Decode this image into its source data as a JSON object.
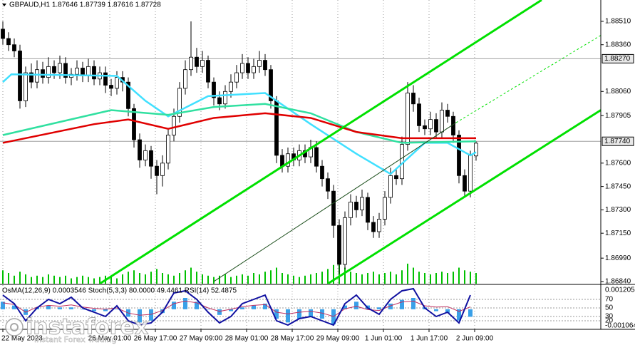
{
  "chart_data": {
    "type": "candlestick",
    "title": "GBPAUD,H1  1.87646 1.87739 1.87616 1.87728",
    "xlim": [
      -0.5,
      104.875
    ],
    "ylim": [
      1.86826,
      1.88647
    ],
    "yticks": [
      {
        "value": 1.8851,
        "label": "1.88510"
      },
      {
        "value": 1.8836,
        "label": "1.88360"
      },
      {
        "value": 1.8806,
        "label": "1.88060"
      },
      1.87905,
      {
        "value": 1.876,
        "label": "1.87600"
      },
      {
        "value": 1.8745,
        "label": "1.87450"
      },
      {
        "value": 1.873,
        "label": "1.87300"
      },
      {
        "value": 1.8715,
        "label": "1.87150"
      },
      {
        "value": 1.8699,
        "label": "1.86990"
      },
      {
        "value": 1.8684,
        "label": "1.86840"
      }
    ],
    "hlines": [
      {
        "value": 1.8827,
        "label": "1.88270"
      },
      {
        "value": 1.8774,
        "label": "1.87740"
      }
    ],
    "xticks": [
      {
        "value": 0,
        "label": "22 May 2023"
      },
      {
        "value": 18.75,
        "label": "26 May 01:00"
      },
      {
        "value": 26.75,
        "label": "26 May 17:00"
      },
      {
        "value": 34.75,
        "label": "27 May 09:00"
      },
      {
        "value": 42.75,
        "label": "28 May 01:00"
      },
      {
        "value": 50.75,
        "label": "28 May 17:00"
      },
      {
        "value": 58.75,
        "label": "29 May 09:00"
      },
      {
        "value": 66.75,
        "label": "1 Jun 01:00"
      },
      {
        "value": 74.75,
        "label": "1 Jun 17:00"
      },
      {
        "value": 82.75,
        "label": "2 Jun 09:00"
      }
    ],
    "grid": true,
    "candle_color": "#000000",
    "volume_color": "#00c000",
    "open": [
      1.8846,
      1.884,
      1.8836,
      1.8832,
      1.88,
      1.8818,
      1.8812,
      1.882,
      1.8815,
      1.8822,
      1.8818,
      1.8824,
      1.8815,
      1.8817,
      1.8821,
      1.8816,
      1.8822,
      1.8814,
      1.8818,
      1.881,
      1.8808,
      1.8815,
      1.8812,
      1.8795,
      1.8775,
      1.8762,
      1.8768,
      1.8758,
      1.8752,
      1.876,
      1.8778,
      1.879,
      1.8808,
      1.882,
      1.8828,
      1.8822,
      1.8826,
      1.8812,
      1.8802,
      1.8798,
      1.8806,
      1.8812,
      1.8818,
      1.8824,
      1.8818,
      1.8822,
      1.8826,
      1.882,
      1.88,
      1.8765,
      1.8758,
      1.8766,
      1.8762,
      1.8768,
      1.8764,
      1.877,
      1.8758,
      1.875,
      1.8742,
      1.872,
      1.8695,
      1.8725,
      1.8735,
      1.873,
      1.8738,
      1.8722,
      1.8716,
      1.8724,
      1.8738,
      1.8752,
      1.875,
      1.8772,
      1.8805,
      1.8798,
      1.8784,
      1.8782,
      1.8788,
      1.878,
      1.8794,
      1.879,
      1.8778,
      1.8752,
      1.8742,
      1.87646
    ],
    "high": [
      1.8851,
      1.8844,
      1.884,
      1.8836,
      1.8822,
      1.8824,
      1.8826,
      1.8825,
      1.8828,
      1.8826,
      1.8829,
      1.8828,
      1.8821,
      1.8826,
      1.8825,
      1.8827,
      1.8826,
      1.8822,
      1.8822,
      1.8814,
      1.8819,
      1.8819,
      1.8815,
      1.8798,
      1.8779,
      1.8772,
      1.8771,
      1.8762,
      1.8765,
      1.8782,
      1.8795,
      1.8812,
      1.8826,
      1.8851,
      1.8834,
      1.8832,
      1.8829,
      1.8815,
      1.8806,
      1.881,
      1.8817,
      1.8823,
      1.883,
      1.8828,
      1.8827,
      1.8832,
      1.883,
      1.8823,
      1.8803,
      1.8769,
      1.877,
      1.877,
      1.8772,
      1.8772,
      1.8775,
      1.8774,
      1.8762,
      1.8754,
      1.8746,
      1.8724,
      1.8729,
      1.874,
      1.8739,
      1.8743,
      1.8741,
      1.8726,
      1.8728,
      1.8742,
      1.8757,
      1.8756,
      1.8777,
      1.8812,
      1.881,
      1.8802,
      1.8788,
      1.8793,
      1.8792,
      1.8799,
      1.8798,
      1.8793,
      1.8781,
      1.8756,
      1.8768,
      1.87739
    ],
    "low": [
      1.8836,
      1.8832,
      1.8828,
      1.8795,
      1.8796,
      1.8808,
      1.8808,
      1.8811,
      1.8811,
      1.8814,
      1.8814,
      1.8811,
      1.881,
      1.8813,
      1.8812,
      1.8812,
      1.881,
      1.881,
      1.8805,
      1.8803,
      1.8804,
      1.8806,
      1.879,
      1.877,
      1.8757,
      1.8758,
      1.875,
      1.874,
      1.8745,
      1.8756,
      1.8774,
      1.8786,
      1.8804,
      1.8816,
      1.8818,
      1.8818,
      1.8808,
      1.8797,
      1.8794,
      1.8795,
      1.8802,
      1.8808,
      1.8814,
      1.8814,
      1.8814,
      1.8818,
      1.8816,
      1.8795,
      1.876,
      1.8754,
      1.8754,
      1.8758,
      1.8758,
      1.876,
      1.876,
      1.8754,
      1.8745,
      1.8737,
      1.8712,
      1.8689,
      1.8692,
      1.872,
      1.8725,
      1.8726,
      1.8717,
      1.8712,
      1.8712,
      1.872,
      1.8734,
      1.8746,
      1.8746,
      1.8768,
      1.8793,
      1.878,
      1.8778,
      1.8778,
      1.8776,
      1.8776,
      1.8786,
      1.8773,
      1.8747,
      1.8738,
      1.8738,
      1.87616
    ],
    "close": [
      1.884,
      1.8836,
      1.8832,
      1.88,
      1.8818,
      1.8812,
      1.882,
      1.8815,
      1.8822,
      1.8818,
      1.8824,
      1.8815,
      1.8817,
      1.8821,
      1.8816,
      1.8822,
      1.8814,
      1.8818,
      1.881,
      1.8808,
      1.8815,
      1.8812,
      1.8795,
      1.8775,
      1.8762,
      1.8768,
      1.8758,
      1.8752,
      1.876,
      1.8778,
      1.879,
      1.8808,
      1.882,
      1.8828,
      1.8822,
      1.8826,
      1.8812,
      1.8802,
      1.8798,
      1.8806,
      1.8812,
      1.8818,
      1.8824,
      1.8818,
      1.8822,
      1.8826,
      1.882,
      1.88,
      1.8765,
      1.8758,
      1.8766,
      1.8762,
      1.8768,
      1.8764,
      1.877,
      1.8758,
      1.875,
      1.8742,
      1.872,
      1.8695,
      1.8725,
      1.8735,
      1.873,
      1.8738,
      1.8722,
      1.8716,
      1.8724,
      1.8738,
      1.8752,
      1.875,
      1.8772,
      1.8805,
      1.8798,
      1.8784,
      1.8782,
      1.8788,
      1.878,
      1.8794,
      1.879,
      1.8778,
      1.8752,
      1.8742,
      1.8765,
      1.87728
    ],
    "volume": [
      10,
      8,
      6,
      9,
      7,
      5,
      6,
      5,
      7,
      6,
      5,
      6,
      4,
      5,
      6,
      5,
      4,
      5,
      6,
      5,
      4,
      7,
      9,
      10,
      8,
      7,
      9,
      11,
      8,
      7,
      6,
      8,
      10,
      12,
      9,
      7,
      6,
      5,
      6,
      7,
      5,
      6,
      7,
      6,
      8,
      7,
      9,
      10,
      12,
      8,
      7,
      6,
      5,
      6,
      7,
      8,
      9,
      11,
      14,
      16,
      12,
      9,
      8,
      7,
      8,
      9,
      7,
      8,
      9,
      7,
      10,
      15,
      12,
      9,
      8,
      7,
      8,
      9,
      8,
      9,
      12,
      10,
      9,
      8
    ],
    "moving_averages": [
      {
        "color": "#40e0ff",
        "x": [
          0,
          1.5,
          20,
          25,
          29,
          36,
          46,
          54,
          62,
          68,
          74,
          78,
          82,
          83
        ],
        "values": [
          1.8812,
          1.8817,
          1.8816,
          1.88,
          1.879,
          1.8803,
          1.8805,
          1.8785,
          1.8766,
          1.8753,
          1.8773,
          1.8773,
          1.8765,
          1.8767
        ]
      },
      {
        "color": "#30e0a0",
        "x": [
          0,
          19,
          29,
          37,
          46,
          54,
          62,
          70,
          83
        ],
        "values": [
          1.8778,
          1.8794,
          1.8791,
          1.8796,
          1.8798,
          1.8792,
          1.878,
          1.8773,
          1.8774
        ]
      },
      {
        "color": "#e00000",
        "x": [
          0,
          16,
          22,
          29,
          37,
          46,
          54,
          62,
          70,
          83
        ],
        "values": [
          1.8773,
          1.8785,
          1.8788,
          1.8782,
          1.8789,
          1.8792,
          1.8789,
          1.878,
          1.8776,
          1.8776
        ]
      }
    ],
    "channels": [
      {
        "color": "#00e000",
        "width": 3,
        "x": [
          17,
          94.5
        ],
        "values": [
          1.86826,
          1.88647
        ]
      },
      {
        "color": "#00e000",
        "width": 3,
        "x": [
          57,
          104.875
        ],
        "values": [
          1.86826,
          1.8794
        ]
      },
      {
        "color": "#1a4d1a",
        "width": 1,
        "x": [
          37,
          79.5
        ],
        "values": [
          1.8684,
          1.8786
        ]
      },
      {
        "color": "#00e000",
        "width": 1,
        "dash": true,
        "x": [
          79.5,
          104.875
        ],
        "values": [
          1.8786,
          1.8842
        ]
      }
    ],
    "indicator": {
      "title": "OsMA(12,26,9) 0.0003546 Stoch(5,3,3) 80.0000 49.4461 RSI(14) 52.4875",
      "ylim": [
        0,
        100
      ],
      "yticks": [
        70,
        50,
        30,
        20
      ],
      "osma_ylim": [
        -0.001064,
        0.0012052
      ],
      "osma_ticks": [
        0.0012052,
        -0.001064
      ],
      "osma_color": "#3aa0e8",
      "stoch_color": "#1010a0",
      "rsi_color": "#c03060",
      "x": [
        0,
        2,
        4,
        6,
        8,
        10,
        12,
        14,
        16,
        18,
        20,
        22,
        24,
        26,
        28,
        30,
        32,
        34,
        36,
        38,
        40,
        42,
        44,
        46,
        48,
        50,
        52,
        54,
        56,
        58,
        60,
        62,
        64,
        66,
        68,
        70,
        72,
        74,
        76,
        78,
        80,
        82
      ],
      "osma": [
        0.0004,
        0.0002,
        -0.0003,
        0.0001,
        0.0002,
        0.0001,
        0.0001,
        0,
        -0.0001,
        -0.0001,
        0,
        -0.0004,
        -0.0007,
        -0.0006,
        -0.0002,
        0.0004,
        0.0006,
        0.0004,
        0,
        -0.0003,
        -0.0001,
        0.0001,
        0.0002,
        0.0003,
        -0.0005,
        -0.0007,
        -0.0005,
        -0.0004,
        -0.0005,
        -0.0008,
        0.0002,
        0.0004,
        0.0002,
        0.0001,
        0.0003,
        0.0005,
        0.0006,
        0.0001,
        -0.0001,
        -0.0002,
        -0.0006,
        -0.0004
      ],
      "stoch": [
        80,
        60,
        20,
        50,
        70,
        60,
        75,
        50,
        40,
        30,
        55,
        20,
        10,
        15,
        40,
        85,
        90,
        70,
        40,
        15,
        30,
        60,
        70,
        80,
        20,
        10,
        25,
        30,
        20,
        10,
        60,
        80,
        50,
        35,
        70,
        90,
        95,
        50,
        30,
        40,
        15,
        80
      ],
      "rsi": [
        62,
        58,
        40,
        52,
        56,
        54,
        57,
        52,
        49,
        47,
        50,
        38,
        33,
        35,
        44,
        60,
        66,
        62,
        50,
        42,
        47,
        53,
        56,
        58,
        40,
        36,
        40,
        42,
        38,
        30,
        48,
        54,
        46,
        44,
        55,
        64,
        66,
        55,
        52,
        53,
        42,
        52.4875
      ]
    },
    "watermark": {
      "name": "instaforex",
      "tagline": "Instant Forex Trading"
    }
  }
}
